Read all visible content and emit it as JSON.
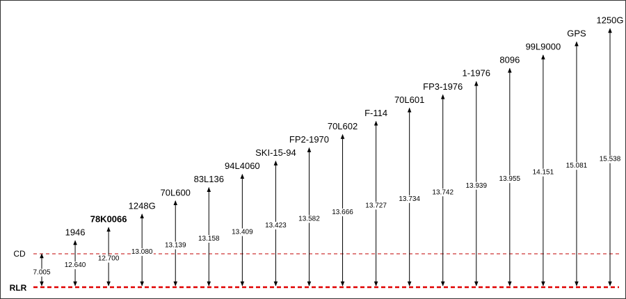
{
  "cd": {
    "label": "CD",
    "value": "7.005"
  },
  "rlr": {
    "label": "RLR"
  },
  "benchmarks": [
    {
      "label": "1946",
      "value": "12.640"
    },
    {
      "label": "78K0066",
      "value": "12.700",
      "bold": true
    },
    {
      "label": "1248G",
      "value": "13.080"
    },
    {
      "label": "70L600",
      "value": "13.139"
    },
    {
      "label": "83L136",
      "value": "13.158"
    },
    {
      "label": "94L4060",
      "value": "13.409"
    },
    {
      "label": "SKI-15-94",
      "value": "13.423"
    },
    {
      "label": "FP2-1970",
      "value": "13.582"
    },
    {
      "label": "70L602",
      "value": "13.666"
    },
    {
      "label": "F-114",
      "value": "13.727"
    },
    {
      "label": "70L601",
      "value": "13.734"
    },
    {
      "label": "FP3-1976",
      "value": "13.742"
    },
    {
      "label": "1-1976",
      "value": "13.939"
    },
    {
      "label": "8096",
      "value": "13.955"
    },
    {
      "label": "99L9000",
      "value": "14.151"
    },
    {
      "label": "GPS",
      "value": "15.081",
      "color": "#e00000"
    },
    {
      "label": "1250G",
      "value": "15.538"
    }
  ]
}
